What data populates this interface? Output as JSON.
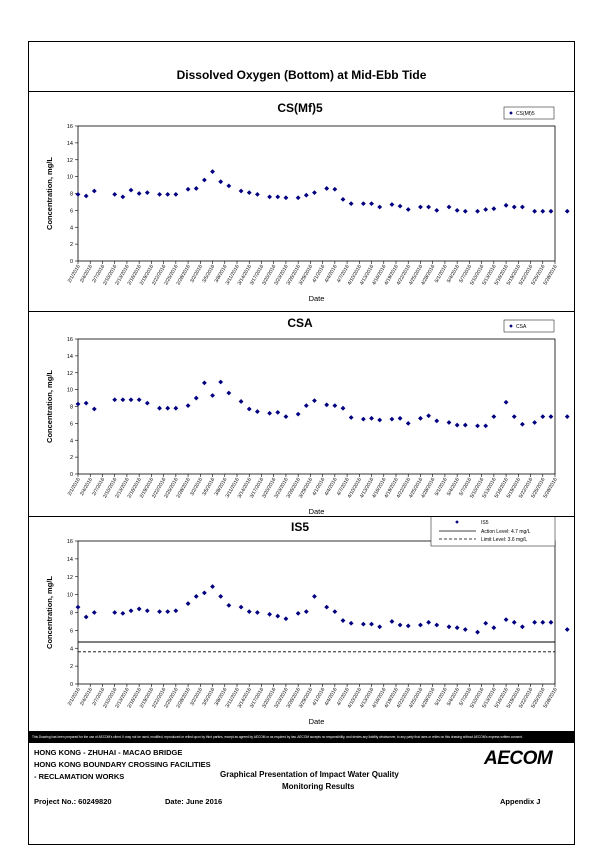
{
  "page_title": "Dissolved Oxygen (Bottom) at Mid-Ebb Tide",
  "x_labels": [
    "2/1/2016",
    "2/4/2016",
    "2/7/2016",
    "2/10/2016",
    "2/13/2016",
    "2/16/2016",
    "2/19/2016",
    "2/22/2016",
    "2/25/2016",
    "2/28/2016",
    "3/2/2016",
    "3/5/2016",
    "3/8/2016",
    "3/11/2016",
    "3/14/2016",
    "3/17/2016",
    "3/20/2016",
    "3/23/2016",
    "3/26/2016",
    "3/29/2016",
    "4/1/2016",
    "4/4/2016",
    "4/7/2016",
    "4/10/2016",
    "4/13/2016",
    "4/16/2016",
    "4/19/2016",
    "4/22/2016",
    "4/25/2016",
    "4/28/2016",
    "5/1/2016",
    "5/4/2016",
    "5/7/2016",
    "5/10/2016",
    "5/13/2016",
    "5/16/2016",
    "5/19/2016",
    "5/22/2016",
    "5/25/2016",
    "5/28/2016"
  ],
  "chart_data": [
    {
      "type": "scatter",
      "title": "CS(Mf)5",
      "xlabel": "Date",
      "ylabel": "Concentration, mg/L",
      "ylim": [
        0,
        16
      ],
      "yticks": [
        0,
        2,
        4,
        6,
        8,
        10,
        12,
        14,
        16
      ],
      "legend": "top-right",
      "series": [
        {
          "name": "CS(Mf)5",
          "x": [
            "2/1/2016",
            "2/3/2016",
            "2/5/2016",
            "2/10/2016",
            "2/12/2016",
            "2/14/2016",
            "2/16/2016",
            "2/18/2016",
            "2/21/2016",
            "2/23/2016",
            "2/25/2016",
            "2/28/2016",
            "3/1/2016",
            "3/3/2016",
            "3/5/2016",
            "3/7/2016",
            "3/9/2016",
            "3/12/2016",
            "3/14/2016",
            "3/16/2016",
            "3/19/2016",
            "3/21/2016",
            "3/23/2016",
            "3/26/2016",
            "3/28/2016",
            "3/30/2016",
            "4/2/2016",
            "4/4/2016",
            "4/6/2016",
            "4/8/2016",
            "4/11/2016",
            "4/13/2016",
            "4/15/2016",
            "4/18/2016",
            "4/20/2016",
            "4/22/2016",
            "4/25/2016",
            "4/27/2016",
            "4/29/2016",
            "5/2/2016",
            "5/4/2016",
            "5/6/2016",
            "5/9/2016",
            "5/11/2016",
            "5/13/2016",
            "5/16/2016",
            "5/18/2016",
            "5/20/2016",
            "5/23/2016",
            "5/25/2016",
            "5/27/2016",
            "5/31/2016"
          ],
          "values": [
            7.9,
            7.7,
            8.3,
            7.9,
            7.6,
            8.4,
            8.0,
            8.1,
            7.9,
            7.9,
            7.9,
            8.5,
            8.6,
            9.6,
            10.6,
            9.4,
            8.9,
            8.3,
            8.1,
            7.9,
            7.6,
            7.6,
            7.5,
            7.5,
            7.8,
            8.1,
            8.6,
            8.5,
            7.3,
            6.8,
            6.8,
            6.8,
            6.4,
            6.7,
            6.5,
            6.1,
            6.4,
            6.4,
            6.0,
            6.4,
            6.0,
            5.9,
            5.9,
            6.1,
            6.2,
            6.6,
            6.4,
            6.4,
            5.9,
            5.9,
            5.9,
            5.9
          ]
        }
      ]
    },
    {
      "type": "scatter",
      "title": "CSA",
      "xlabel": "Date",
      "ylabel": "Concentration, mg/L",
      "ylim": [
        0,
        16
      ],
      "yticks": [
        0,
        2,
        4,
        6,
        8,
        10,
        12,
        14,
        16
      ],
      "legend": "top-right",
      "series": [
        {
          "name": "CSA",
          "x": [
            "2/1/2016",
            "2/3/2016",
            "2/5/2016",
            "2/10/2016",
            "2/12/2016",
            "2/14/2016",
            "2/16/2016",
            "2/18/2016",
            "2/21/2016",
            "2/23/2016",
            "2/25/2016",
            "2/28/2016",
            "3/1/2016",
            "3/3/2016",
            "3/5/2016",
            "3/7/2016",
            "3/9/2016",
            "3/12/2016",
            "3/14/2016",
            "3/16/2016",
            "3/19/2016",
            "3/21/2016",
            "3/23/2016",
            "3/26/2016",
            "3/28/2016",
            "3/30/2016",
            "4/2/2016",
            "4/4/2016",
            "4/6/2016",
            "4/8/2016",
            "4/11/2016",
            "4/13/2016",
            "4/15/2016",
            "4/18/2016",
            "4/20/2016",
            "4/22/2016",
            "4/25/2016",
            "4/27/2016",
            "4/29/2016",
            "5/2/2016",
            "5/4/2016",
            "5/6/2016",
            "5/9/2016",
            "5/11/2016",
            "5/13/2016",
            "5/16/2016",
            "5/18/2016",
            "5/20/2016",
            "5/23/2016",
            "5/25/2016",
            "5/27/2016",
            "5/31/2016"
          ],
          "values": [
            8.3,
            8.4,
            7.7,
            8.8,
            8.8,
            8.8,
            8.8,
            8.4,
            7.8,
            7.8,
            7.8,
            8.1,
            9.0,
            10.8,
            9.3,
            10.9,
            9.6,
            8.6,
            7.7,
            7.4,
            7.2,
            7.3,
            6.8,
            7.1,
            8.1,
            8.7,
            8.2,
            8.1,
            7.8,
            6.7,
            6.5,
            6.6,
            6.4,
            6.5,
            6.6,
            6.0,
            6.6,
            6.9,
            6.3,
            6.1,
            5.8,
            5.8,
            5.7,
            5.7,
            6.8,
            8.5,
            6.8,
            5.9,
            6.1,
            6.8,
            6.8,
            6.8
          ]
        }
      ]
    },
    {
      "type": "scatter",
      "title": "IS5",
      "xlabel": "Date",
      "ylabel": "Concentration, mg/L",
      "ylim": [
        0,
        16
      ],
      "yticks": [
        0,
        2,
        4,
        6,
        8,
        10,
        12,
        14,
        16
      ],
      "legend": "top-right",
      "series": [
        {
          "name": "IS5",
          "x": [
            "2/1/2016",
            "2/3/2016",
            "2/5/2016",
            "2/10/2016",
            "2/12/2016",
            "2/14/2016",
            "2/16/2016",
            "2/18/2016",
            "2/21/2016",
            "2/23/2016",
            "2/25/2016",
            "2/28/2016",
            "3/1/2016",
            "3/3/2016",
            "3/5/2016",
            "3/7/2016",
            "3/9/2016",
            "3/12/2016",
            "3/14/2016",
            "3/16/2016",
            "3/19/2016",
            "3/21/2016",
            "3/23/2016",
            "3/26/2016",
            "3/28/2016",
            "3/30/2016",
            "4/2/2016",
            "4/4/2016",
            "4/6/2016",
            "4/8/2016",
            "4/11/2016",
            "4/13/2016",
            "4/15/2016",
            "4/18/2016",
            "4/20/2016",
            "4/22/2016",
            "4/25/2016",
            "4/27/2016",
            "4/29/2016",
            "5/2/2016",
            "5/4/2016",
            "5/6/2016",
            "5/9/2016",
            "5/11/2016",
            "5/13/2016",
            "5/16/2016",
            "5/18/2016",
            "5/20/2016",
            "5/23/2016",
            "5/25/2016",
            "5/27/2016",
            "5/31/2016"
          ],
          "values": [
            8.6,
            7.5,
            8.0,
            8.0,
            7.9,
            8.2,
            8.4,
            8.2,
            8.1,
            8.1,
            8.2,
            9.0,
            9.8,
            10.2,
            10.9,
            9.8,
            8.8,
            8.6,
            8.1,
            8.0,
            7.8,
            7.6,
            7.3,
            7.9,
            8.1,
            9.8,
            8.6,
            8.1,
            7.1,
            6.8,
            6.7,
            6.7,
            6.4,
            7.0,
            6.6,
            6.5,
            6.6,
            6.9,
            6.6,
            6.4,
            6.3,
            6.1,
            5.8,
            6.8,
            6.3,
            7.2,
            6.9,
            6.4,
            6.9,
            6.9,
            6.9,
            6.1
          ]
        }
      ],
      "reference_lines": [
        {
          "name": "Action Level: 4.7 mg/L",
          "value": 4.7,
          "style": "solid"
        },
        {
          "name": "Limit Level: 3.6 mg/L",
          "value": 3.6,
          "style": "dashed"
        }
      ]
    }
  ],
  "disclaimer": "This Drawing has been prepared for the use of AECOM's client. It may not be used, modified, reproduced or relied upon by third parties, except as agreed by AECOM or as required by law. AECOM accepts no responsibility, and denies any liability whatsoever, to any party that uses or relies on this drawing without AECOM's express written consent.",
  "footer": {
    "line1": "HONG KONG - ZHUHAI - MACAO BRIDGE",
    "line2": "HONG KONG BOUNDARY CROSSING FACILITIES",
    "line3": "- RECLAMATION WORKS",
    "heading1": "Graphical Presentation of Impact Water Quality",
    "heading2": "Monitoring Results",
    "project": "Project No.: 60249820",
    "date": "Date: June 2016",
    "appendix": "Appendix J",
    "logo": "AECOM",
    "logo_color": "#000000"
  }
}
